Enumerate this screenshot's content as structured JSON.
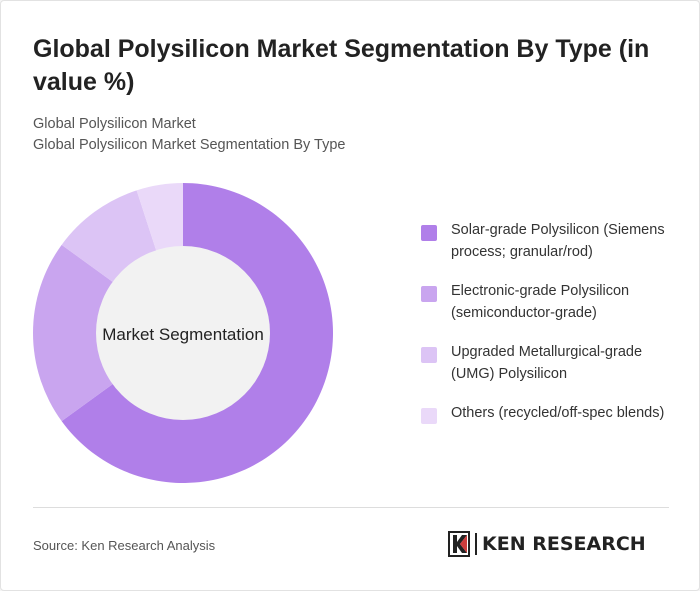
{
  "header": {
    "title": "Global Polysilicon Market Segmentation By Type (in value %)",
    "subtitle_line1": "Global Polysilicon Market",
    "subtitle_line2": "Global Polysilicon Market Segmentation By Type"
  },
  "chart_data": {
    "type": "pie",
    "variant": "donut",
    "center_label": "Market Segmentation",
    "categories": [
      "Solar-grade Polysilicon (Siemens process; granular/rod)",
      "Electronic-grade Polysilicon (semiconductor-grade)",
      "Upgraded Metallurgical-grade (UMG) Polysilicon",
      "Others (recycled/off-spec blends)"
    ],
    "values": [
      65,
      20,
      10,
      5
    ],
    "colors": [
      "#b07fe9",
      "#c9a5ef",
      "#dcc4f5",
      "#ead9f9"
    ],
    "legend_position": "right"
  },
  "footer": {
    "source": "Source: Ken Research Analysis",
    "logo_text": "KEN RESEARCH"
  }
}
